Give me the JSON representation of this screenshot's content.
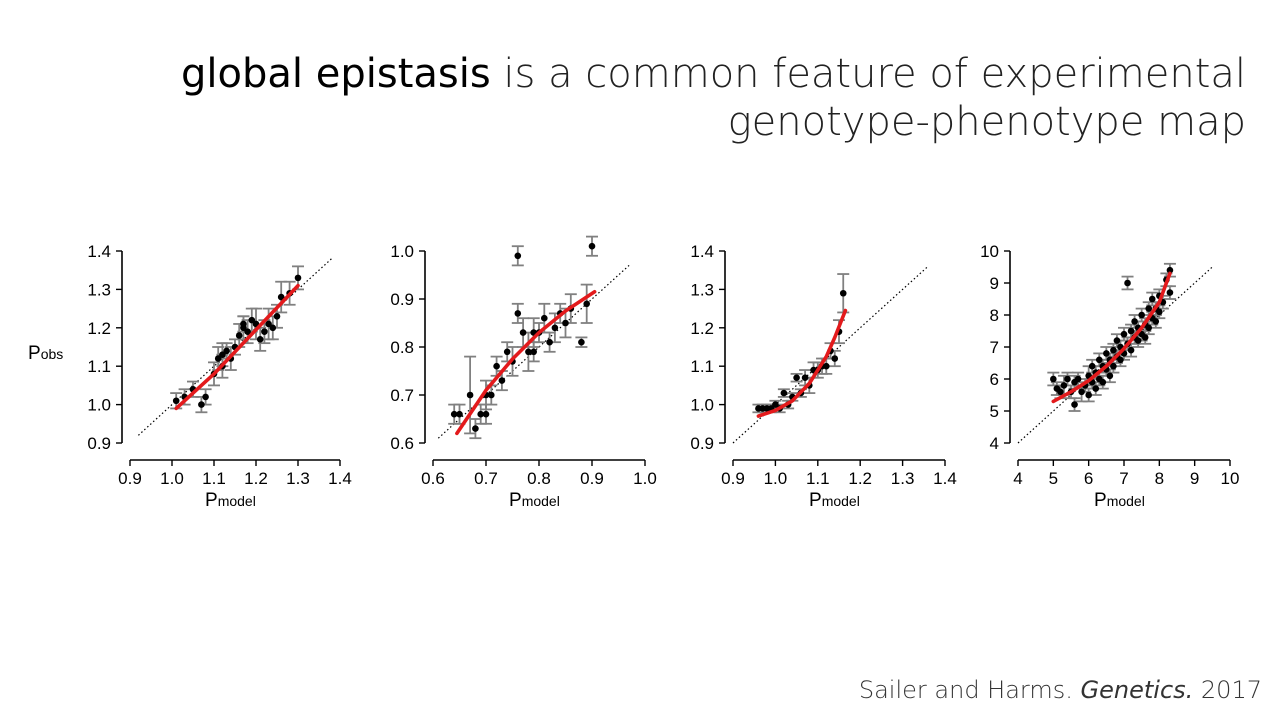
{
  "slide": {
    "title_bold": "global epistasis",
    "title_rest_line1": " is a common feature of experimental",
    "title_line2": "genotype-phenotype map",
    "citation_authors": "Sailer and Harms. ",
    "citation_journal": "Genetics.",
    "citation_year": " 2017"
  },
  "colors": {
    "fit": "#e31a1c",
    "points": "#000000",
    "errorbars": "#808080",
    "identity": "#000000"
  },
  "chart_data": [
    {
      "type": "scatter",
      "xlabel_main": "P",
      "xlabel_sub": "model",
      "ylabel_main": "P",
      "ylabel_sub": "obs",
      "xlim": [
        0.9,
        1.4
      ],
      "ylim": [
        0.9,
        1.4
      ],
      "xticks": [
        "0.9",
        "1.0",
        "1.1",
        "1.2",
        "1.3",
        "1.4"
      ],
      "yticks": [
        "0.9",
        "1.0",
        "1.1",
        "1.2",
        "1.3",
        "1.4"
      ],
      "identity_line": [
        0.92,
        1.38
      ],
      "points": [
        [
          1.01,
          1.01,
          0.02
        ],
        [
          1.03,
          1.02,
          0.02
        ],
        [
          1.05,
          1.04,
          0.02
        ],
        [
          1.07,
          1.0,
          0.02
        ],
        [
          1.08,
          1.02,
          0.02
        ],
        [
          1.1,
          1.08,
          0.03
        ],
        [
          1.11,
          1.12,
          0.03
        ],
        [
          1.12,
          1.1,
          0.03
        ],
        [
          1.12,
          1.13,
          0.03
        ],
        [
          1.13,
          1.14,
          0.02
        ],
        [
          1.14,
          1.12,
          0.03
        ],
        [
          1.15,
          1.15,
          0.02
        ],
        [
          1.16,
          1.18,
          0.03
        ],
        [
          1.17,
          1.2,
          0.03
        ],
        [
          1.17,
          1.21,
          0.02
        ],
        [
          1.18,
          1.19,
          0.03
        ],
        [
          1.19,
          1.22,
          0.03
        ],
        [
          1.2,
          1.21,
          0.04
        ],
        [
          1.21,
          1.17,
          0.03
        ],
        [
          1.22,
          1.19,
          0.03
        ],
        [
          1.23,
          1.21,
          0.04
        ],
        [
          1.24,
          1.2,
          0.03
        ],
        [
          1.25,
          1.23,
          0.03
        ],
        [
          1.26,
          1.28,
          0.04
        ],
        [
          1.28,
          1.29,
          0.03
        ],
        [
          1.3,
          1.33,
          0.03
        ]
      ],
      "fit": [
        [
          1.01,
          0.99
        ],
        [
          1.1,
          1.08
        ],
        [
          1.2,
          1.195
        ],
        [
          1.3,
          1.31
        ]
      ]
    },
    {
      "type": "scatter",
      "xlabel_main": "P",
      "xlabel_sub": "model",
      "xlim": [
        0.6,
        1.0
      ],
      "ylim": [
        0.6,
        1.0
      ],
      "xticks": [
        "0.6",
        "0.7",
        "0.8",
        "0.9",
        "1.0"
      ],
      "yticks": [
        "0.6",
        "0.7",
        "0.8",
        "0.9",
        "1.0"
      ],
      "identity_line": [
        0.61,
        0.97
      ],
      "points": [
        [
          0.64,
          0.66,
          0.02
        ],
        [
          0.65,
          0.66,
          0.02
        ],
        [
          0.67,
          0.7,
          0.08
        ],
        [
          0.68,
          0.63,
          0.02
        ],
        [
          0.69,
          0.66,
          0.02
        ],
        [
          0.7,
          0.66,
          0.02
        ],
        [
          0.7,
          0.7,
          0.03
        ],
        [
          0.71,
          0.7,
          0.02
        ],
        [
          0.72,
          0.76,
          0.02
        ],
        [
          0.73,
          0.73,
          0.02
        ],
        [
          0.74,
          0.79,
          0.02
        ],
        [
          0.75,
          0.77,
          0.03
        ],
        [
          0.76,
          0.99,
          0.02
        ],
        [
          0.76,
          0.87,
          0.02
        ],
        [
          0.77,
          0.83,
          0.03
        ],
        [
          0.78,
          0.79,
          0.04
        ],
        [
          0.79,
          0.79,
          0.02
        ],
        [
          0.79,
          0.83,
          0.03
        ],
        [
          0.8,
          0.83,
          0.02
        ],
        [
          0.81,
          0.86,
          0.03
        ],
        [
          0.82,
          0.81,
          0.02
        ],
        [
          0.83,
          0.84,
          0.03
        ],
        [
          0.84,
          0.87,
          0.02
        ],
        [
          0.85,
          0.85,
          0.03
        ],
        [
          0.86,
          0.88,
          0.03
        ],
        [
          0.88,
          0.81,
          0.01
        ],
        [
          0.89,
          0.89,
          0.04
        ],
        [
          0.9,
          1.01,
          0.02
        ]
      ],
      "fit": [
        [
          0.645,
          0.62
        ],
        [
          0.7,
          0.71
        ],
        [
          0.75,
          0.775
        ],
        [
          0.8,
          0.83
        ],
        [
          0.85,
          0.875
        ],
        [
          0.905,
          0.915
        ]
      ]
    },
    {
      "type": "scatter",
      "xlabel_main": "P",
      "xlabel_sub": "model",
      "xlim": [
        0.9,
        1.4
      ],
      "ylim": [
        0.9,
        1.4
      ],
      "xticks": [
        "0.9",
        "1.0",
        "1.1",
        "1.2",
        "1.3",
        "1.4"
      ],
      "yticks": [
        "0.9",
        "1.0",
        "1.1",
        "1.2",
        "1.3",
        "1.4"
      ],
      "identity_line": [
        0.9,
        1.36
      ],
      "points": [
        [
          0.96,
          0.99,
          0.01
        ],
        [
          0.97,
          0.99,
          0.01
        ],
        [
          0.98,
          0.99,
          0.01
        ],
        [
          0.99,
          0.99,
          0.01
        ],
        [
          1.0,
          1.0,
          0.01
        ],
        [
          1.01,
          0.99,
          0.01
        ],
        [
          1.02,
          1.03,
          0.01
        ],
        [
          1.03,
          1.0,
          0.01
        ],
        [
          1.04,
          1.02,
          0.01
        ],
        [
          1.05,
          1.07,
          0.01
        ],
        [
          1.06,
          1.03,
          0.01
        ],
        [
          1.07,
          1.07,
          0.02
        ],
        [
          1.08,
          1.05,
          0.02
        ],
        [
          1.09,
          1.09,
          0.02
        ],
        [
          1.1,
          1.09,
          0.02
        ],
        [
          1.11,
          1.1,
          0.02
        ],
        [
          1.12,
          1.1,
          0.02
        ],
        [
          1.13,
          1.14,
          0.02
        ],
        [
          1.14,
          1.12,
          0.02
        ],
        [
          1.15,
          1.19,
          0.03
        ],
        [
          1.16,
          1.29,
          0.05
        ]
      ],
      "fit": [
        [
          0.96,
          0.97
        ],
        [
          1.0,
          0.985
        ],
        [
          1.04,
          1.01
        ],
        [
          1.08,
          1.055
        ],
        [
          1.12,
          1.125
        ],
        [
          1.14,
          1.175
        ],
        [
          1.165,
          1.245
        ]
      ]
    },
    {
      "type": "scatter",
      "xlabel_main": "P",
      "xlabel_sub": "model",
      "xlim": [
        4,
        10
      ],
      "ylim": [
        4,
        10
      ],
      "xticks": [
        "4",
        "5",
        "6",
        "7",
        "8",
        "9",
        "10"
      ],
      "yticks": [
        "4",
        "5",
        "6",
        "7",
        "8",
        "9",
        "10"
      ],
      "identity_line": [
        4.0,
        9.5
      ],
      "points": [
        [
          5.0,
          6.0,
          0.2
        ],
        [
          5.1,
          5.7,
          0.2
        ],
        [
          5.2,
          5.6,
          0.2
        ],
        [
          5.3,
          5.8,
          0.3
        ],
        [
          5.4,
          6.0,
          0.2
        ],
        [
          5.5,
          5.6,
          0.2
        ],
        [
          5.6,
          5.2,
          0.2
        ],
        [
          5.6,
          5.9,
          0.2
        ],
        [
          5.7,
          6.0,
          0.2
        ],
        [
          5.8,
          5.6,
          0.3
        ],
        [
          5.9,
          5.8,
          0.2
        ],
        [
          6.0,
          6.1,
          0.3
        ],
        [
          6.0,
          5.5,
          0.2
        ],
        [
          6.1,
          5.9,
          0.2
        ],
        [
          6.1,
          6.4,
          0.2
        ],
        [
          6.2,
          6.2,
          0.2
        ],
        [
          6.2,
          5.7,
          0.2
        ],
        [
          6.3,
          6.0,
          0.2
        ],
        [
          6.3,
          6.6,
          0.2
        ],
        [
          6.4,
          6.4,
          0.2
        ],
        [
          6.4,
          5.9,
          0.2
        ],
        [
          6.5,
          6.3,
          0.2
        ],
        [
          6.5,
          6.8,
          0.2
        ],
        [
          6.6,
          6.1,
          0.2
        ],
        [
          6.6,
          6.6,
          0.2
        ],
        [
          6.7,
          6.9,
          0.2
        ],
        [
          6.7,
          6.4,
          0.2
        ],
        [
          6.8,
          6.7,
          0.2
        ],
        [
          6.8,
          7.2,
          0.2
        ],
        [
          6.9,
          6.6,
          0.2
        ],
        [
          6.9,
          7.0,
          0.2
        ],
        [
          7.0,
          7.4,
          0.2
        ],
        [
          7.0,
          6.8,
          0.2
        ],
        [
          7.1,
          7.1,
          0.2
        ],
        [
          7.1,
          9.0,
          0.2
        ],
        [
          7.2,
          7.5,
          0.2
        ],
        [
          7.2,
          6.9,
          0.2
        ],
        [
          7.3,
          7.3,
          0.2
        ],
        [
          7.3,
          7.8,
          0.2
        ],
        [
          7.4,
          7.2,
          0.2
        ],
        [
          7.4,
          7.6,
          0.2
        ],
        [
          7.5,
          7.4,
          0.2
        ],
        [
          7.5,
          8.0,
          0.2
        ],
        [
          7.6,
          7.7,
          0.2
        ],
        [
          7.6,
          7.3,
          0.2
        ],
        [
          7.7,
          8.2,
          0.2
        ],
        [
          7.7,
          7.6,
          0.2
        ],
        [
          7.8,
          7.9,
          0.2
        ],
        [
          7.8,
          8.5,
          0.2
        ],
        [
          7.9,
          8.2,
          0.2
        ],
        [
          7.9,
          7.8,
          0.2
        ],
        [
          8.0,
          8.6,
          0.2
        ],
        [
          8.0,
          8.1,
          0.2
        ],
        [
          8.1,
          8.4,
          0.2
        ],
        [
          8.2,
          9.1,
          0.2
        ],
        [
          8.3,
          9.4,
          0.2
        ],
        [
          8.3,
          8.7,
          0.2
        ]
      ],
      "fit": [
        [
          5.0,
          5.3
        ],
        [
          5.5,
          5.6
        ],
        [
          6.0,
          5.95
        ],
        [
          6.5,
          6.4
        ],
        [
          7.0,
          6.95
        ],
        [
          7.5,
          7.6
        ],
        [
          8.0,
          8.4
        ],
        [
          8.3,
          9.3
        ]
      ]
    }
  ]
}
